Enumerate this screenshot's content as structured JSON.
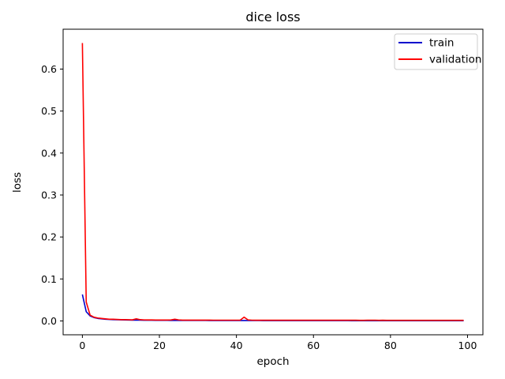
{
  "chart_data": {
    "type": "line",
    "title": "dice loss",
    "xlabel": "epoch",
    "ylabel": "loss",
    "xlim": [
      -5,
      104
    ],
    "ylim": [
      -0.033,
      0.695
    ],
    "xticks": [
      0,
      20,
      40,
      60,
      80,
      100
    ],
    "xtick_labels": [
      "0",
      "20",
      "40",
      "60",
      "80",
      "100"
    ],
    "yticks": [
      0.0,
      0.1,
      0.2,
      0.3,
      0.4,
      0.5,
      0.6
    ],
    "ytick_labels": [
      "0.0",
      "0.1",
      "0.2",
      "0.3",
      "0.4",
      "0.5",
      "0.6"
    ],
    "grid": false,
    "legend_position": "top-right",
    "x": [
      0,
      1,
      2,
      3,
      4,
      5,
      6,
      7,
      8,
      9,
      10,
      11,
      12,
      13,
      14,
      15,
      16,
      17,
      18,
      19,
      20,
      21,
      22,
      23,
      24,
      25,
      26,
      27,
      28,
      29,
      30,
      31,
      32,
      33,
      34,
      35,
      36,
      37,
      38,
      39,
      40,
      41,
      42,
      43,
      44,
      45,
      46,
      47,
      48,
      49,
      50,
      51,
      52,
      53,
      54,
      55,
      56,
      57,
      58,
      59,
      60,
      61,
      62,
      63,
      64,
      65,
      66,
      67,
      68,
      69,
      70,
      71,
      72,
      73,
      74,
      75,
      76,
      77,
      78,
      79,
      80,
      81,
      82,
      83,
      84,
      85,
      86,
      87,
      88,
      89,
      90,
      91,
      92,
      93,
      94,
      95,
      96,
      97,
      98,
      99
    ],
    "series": [
      {
        "name": "train",
        "color": "#0000cc",
        "values": [
          0.063,
          0.022,
          0.012,
          0.008,
          0.006,
          0.005,
          0.004,
          0.0035,
          0.003,
          0.0028,
          0.0025,
          0.0023,
          0.0022,
          0.002,
          0.0019,
          0.0018,
          0.0017,
          0.0016,
          0.0016,
          0.0015,
          0.0015,
          0.0014,
          0.0014,
          0.0013,
          0.0013,
          0.0013,
          0.0012,
          0.0012,
          0.0012,
          0.0011,
          0.0011,
          0.0011,
          0.0011,
          0.001,
          0.001,
          0.001,
          0.001,
          0.001,
          0.001,
          0.001,
          0.0009,
          0.0009,
          0.0009,
          0.0009,
          0.0009,
          0.0009,
          0.0009,
          0.0008,
          0.0008,
          0.0008,
          0.0008,
          0.0008,
          0.0008,
          0.0008,
          0.0008,
          0.0008,
          0.0008,
          0.0007,
          0.0007,
          0.0007,
          0.0007,
          0.0007,
          0.0007,
          0.0007,
          0.0007,
          0.0007,
          0.0007,
          0.0007,
          0.0007,
          0.0007,
          0.0006,
          0.0006,
          0.0006,
          0.0006,
          0.0006,
          0.0006,
          0.0006,
          0.0006,
          0.0006,
          0.0006,
          0.0006,
          0.0006,
          0.0006,
          0.0006,
          0.0006,
          0.0006,
          0.0006,
          0.0006,
          0.0005,
          0.0005,
          0.0005,
          0.0005,
          0.0005,
          0.0005,
          0.0005,
          0.0005,
          0.0005,
          0.0005,
          0.0005,
          0.0005
        ]
      },
      {
        "name": "validation",
        "color": "#ff0000",
        "values": [
          0.662,
          0.045,
          0.014,
          0.009,
          0.007,
          0.006,
          0.005,
          0.004,
          0.004,
          0.0035,
          0.003,
          0.003,
          0.0028,
          0.0026,
          0.005,
          0.003,
          0.0025,
          0.0024,
          0.0023,
          0.0022,
          0.0022,
          0.0021,
          0.0022,
          0.0024,
          0.004,
          0.0025,
          0.002,
          0.002,
          0.002,
          0.002,
          0.0019,
          0.0019,
          0.002,
          0.0019,
          0.0018,
          0.0018,
          0.0018,
          0.0018,
          0.0018,
          0.0018,
          0.0018,
          0.002,
          0.009,
          0.0025,
          0.0018,
          0.0017,
          0.0017,
          0.0017,
          0.0017,
          0.0017,
          0.0017,
          0.0016,
          0.0016,
          0.0016,
          0.0016,
          0.0016,
          0.0016,
          0.0016,
          0.0018,
          0.0017,
          0.0016,
          0.0016,
          0.0016,
          0.0016,
          0.0016,
          0.0016,
          0.0016,
          0.0016,
          0.0016,
          0.0016,
          0.0016,
          0.0016,
          0.0015,
          0.0015,
          0.0016,
          0.0016,
          0.0018,
          0.0015,
          0.0017,
          0.0015,
          0.0015,
          0.0015,
          0.0015,
          0.0015,
          0.0015,
          0.0015,
          0.0015,
          0.0015,
          0.0015,
          0.0015,
          0.0015,
          0.0015,
          0.0015,
          0.0015,
          0.0015,
          0.0015,
          0.0015,
          0.0015,
          0.0015,
          0.0015
        ]
      }
    ]
  }
}
